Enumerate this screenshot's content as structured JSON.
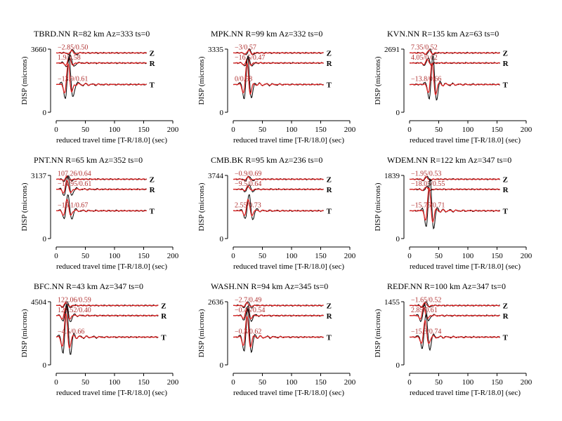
{
  "figure": {
    "xlabel": "reduced travel time [T-R/18.0] (sec)",
    "ylabel": "DISP (microns)",
    "xticks": [
      0,
      50,
      100,
      150,
      200
    ],
    "xlim": [
      0,
      200
    ],
    "component_labels": [
      "Z",
      "R",
      "T"
    ],
    "colors": {
      "observed": "#000000",
      "synthetic": "#dd2222",
      "annotation": "#b03030",
      "axis": "#000000"
    }
  },
  "chart_data": [
    {
      "type": "line",
      "title": "TBRD.NN R=82 km Az=333 ts=0",
      "ymax_label": "3660",
      "ymin_label": "0",
      "trace_end": 155,
      "traces": [
        {
          "component": "Z",
          "annotation": "−2.85/0.50",
          "amp": 0.05,
          "peak": 28
        },
        {
          "component": "R",
          "annotation": "1.9/0.58",
          "amp": 0.12,
          "peak": 24
        },
        {
          "component": "T",
          "annotation": "−13.9/0.61",
          "amp": 0.45,
          "peak": 22
        }
      ]
    },
    {
      "type": "line",
      "title": "MPK.NN R=99 km Az=332 ts=0",
      "ymax_label": "3335",
      "ymin_label": "0",
      "trace_end": 155,
      "traces": [
        {
          "component": "Z",
          "annotation": "−3/0.57",
          "amp": 0.06,
          "peak": 28
        },
        {
          "component": "R",
          "annotation": "−16.5/0.47",
          "amp": 0.1,
          "peak": 26
        },
        {
          "component": "T",
          "annotation": "0/0.58",
          "amp": 0.45,
          "peak": 25
        }
      ]
    },
    {
      "type": "line",
      "title": "KVN.NN R=135 km Az=63 ts=0",
      "ymax_label": "2691",
      "ymin_label": "0",
      "trace_end": 155,
      "traces": [
        {
          "component": "Z",
          "annotation": "7.35/0.52",
          "amp": 0.06,
          "peak": 35
        },
        {
          "component": "R",
          "annotation": "4.05/0.62",
          "amp": 0.08,
          "peak": 32
        },
        {
          "component": "T",
          "annotation": "−13.8/0.66",
          "amp": 0.45,
          "peak": 40
        }
      ]
    },
    {
      "type": "line",
      "title": "PNT.NN R=65 km Az=352 ts=0",
      "ymax_label": "3137",
      "ymin_label": "0",
      "trace_end": 155,
      "traces": [
        {
          "component": "Z",
          "annotation": "107.26/0.64",
          "amp": 0.06,
          "peak": 20
        },
        {
          "component": "R",
          "annotation": "−14.95/0.61",
          "amp": 0.2,
          "peak": 20
        },
        {
          "component": "T",
          "annotation": "−15.1/0.67",
          "amp": 0.25,
          "peak": 20
        }
      ]
    },
    {
      "type": "line",
      "title": "CMB.BK R=95 km Az=236 ts=0",
      "ymax_label": "3744",
      "ymin_label": "0",
      "trace_end": 155,
      "traces": [
        {
          "component": "Z",
          "annotation": "−0.9/0.69",
          "amp": 0.05,
          "peak": 27
        },
        {
          "component": "R",
          "annotation": "−9.5/0.64",
          "amp": 0.07,
          "peak": 27
        },
        {
          "component": "T",
          "annotation": "2.55/0.73",
          "amp": 0.25,
          "peak": 27
        }
      ]
    },
    {
      "type": "line",
      "title": "WDEM.NN R=122 km Az=347 ts=0",
      "ymax_label": "1839",
      "ymin_label": "0",
      "trace_end": 155,
      "traces": [
        {
          "component": "Z",
          "annotation": "−1.95/0.53",
          "amp": 0.05,
          "peak": 30
        },
        {
          "component": "R",
          "annotation": "−18.05/0.55",
          "amp": 0.05,
          "peak": 30
        },
        {
          "component": "T",
          "annotation": "−15.75/0.71",
          "amp": 0.5,
          "peak": 35
        }
      ]
    },
    {
      "type": "line",
      "title": "BFC.NN R=43 km Az=347 ts=0",
      "ymax_label": "4504",
      "ymin_label": "0",
      "trace_end": 175,
      "traces": [
        {
          "component": "Z",
          "annotation": "122.06/0.59",
          "amp": 0.06,
          "peak": 18
        },
        {
          "component": "R",
          "annotation": "128.52/0.40",
          "amp": 0.18,
          "peak": 18
        },
        {
          "component": "T",
          "annotation": "−4.5/0.66",
          "amp": 0.5,
          "peak": 18
        }
      ]
    },
    {
      "type": "line",
      "title": "WASH.NN R=94 km Az=345 ts=0",
      "ymax_label": "2636",
      "ymin_label": "0",
      "trace_end": 155,
      "traces": [
        {
          "component": "Z",
          "annotation": "−2.7/0.49",
          "amp": 0.06,
          "peak": 25
        },
        {
          "component": "R",
          "annotation": "−0.45/0.54",
          "amp": 0.15,
          "peak": 25
        },
        {
          "component": "T",
          "annotation": "−0.3/0.62",
          "amp": 0.45,
          "peak": 25
        }
      ]
    },
    {
      "type": "line",
      "title": "REDF.NN R=100 km Az=347 ts=0",
      "ymax_label": "1455",
      "ymin_label": "0",
      "trace_end": 155,
      "traces": [
        {
          "component": "Z",
          "annotation": "−1.65/0.52",
          "amp": 0.06,
          "peak": 28
        },
        {
          "component": "R",
          "annotation": "2.85/0.61",
          "amp": 0.18,
          "peak": 26
        },
        {
          "component": "T",
          "annotation": "−15.3/0.74",
          "amp": 0.35,
          "peak": 28
        }
      ]
    }
  ]
}
